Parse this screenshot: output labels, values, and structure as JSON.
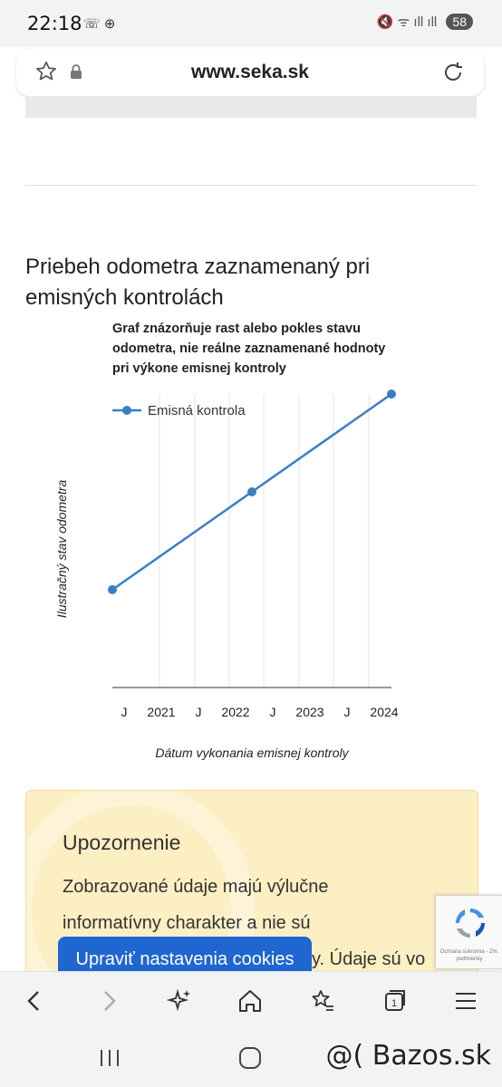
{
  "status_bar": {
    "time": "22:18",
    "left_icons": "☏ ⊕",
    "right_icons": "🔇 ᯤ ıll ıll",
    "battery": "58"
  },
  "browser": {
    "url": "www.seka.sk"
  },
  "section": {
    "title": "Priebeh odometra zaznamenaný pri emisných kontrolách"
  },
  "chart_data": {
    "type": "line",
    "title": "Graf znázorňuje rast alebo pokles stavu odometra, nie reálne zaznamenané hodnoty pri výkone emisnej kontroly",
    "xlabel": "Dátum vykonania emisnej kontroly",
    "ylabel": "Ilustračný stav odometra",
    "x_ticks": [
      "J",
      "2021",
      "J",
      "2022",
      "J",
      "2023",
      "J",
      "2024"
    ],
    "series": [
      {
        "name": "Emisná kontrola",
        "color": "#3a7fc4",
        "x": [
          0,
          2,
          4
        ],
        "values": [
          1,
          2,
          3
        ]
      }
    ],
    "x_range": [
      0,
      4
    ],
    "y_range": [
      0,
      3
    ],
    "legend": "top-left",
    "grid": "vertical"
  },
  "warning": {
    "title": "Upozornenie",
    "lines": [
      "Zobrazované údaje majú výlučne",
      "informatívny charakter a nie sú",
      "y. Údaje sú vo"
    ]
  },
  "cookie_button": "Upraviť nastavenia cookies",
  "recaptcha": {
    "text": "Ochrana súkromia - Zm. podmienky"
  },
  "watermark": "@( Bazos.sk"
}
